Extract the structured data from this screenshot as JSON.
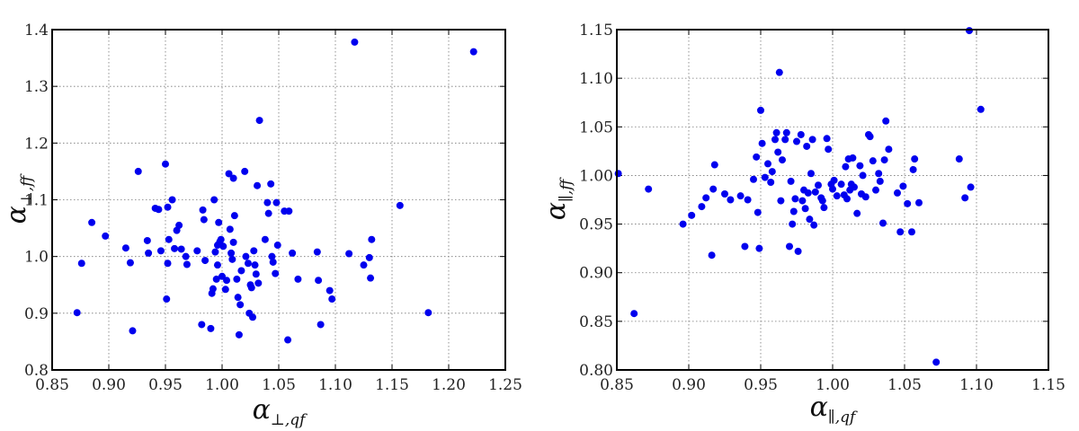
{
  "chart_data": [
    {
      "type": "scatter",
      "color": "#0000ee",
      "xlabel_main": "α",
      "xlabel_sub": "⊥,qf",
      "ylabel_main": "α",
      "ylabel_sub": "⊥,ff",
      "xlim": [
        0.85,
        1.25
      ],
      "ylim": [
        0.8,
        1.4
      ],
      "grid": true,
      "xticks": [
        "0.85",
        "0.90",
        "0.95",
        "1.00",
        "1.05",
        "1.10",
        "1.15",
        "1.20",
        "1.25"
      ],
      "yticks": [
        "0.8",
        "0.9",
        "1.0",
        "1.1",
        "1.2",
        "1.3",
        "1.4"
      ],
      "points": [
        [
          0.872,
          0.901
        ],
        [
          0.876,
          0.988
        ],
        [
          0.885,
          1.06
        ],
        [
          0.897,
          1.036
        ],
        [
          0.915,
          1.015
        ],
        [
          0.919,
          0.989
        ],
        [
          0.921,
          0.869
        ],
        [
          0.926,
          1.15
        ],
        [
          0.934,
          1.028
        ],
        [
          0.935,
          1.006
        ],
        [
          0.941,
          1.085
        ],
        [
          0.944,
          1.083
        ],
        [
          0.946,
          1.01
        ],
        [
          0.95,
          1.163
        ],
        [
          0.951,
          0.925
        ],
        [
          0.952,
          1.087
        ],
        [
          0.952,
          0.988
        ],
        [
          0.953,
          1.03
        ],
        [
          0.956,
          1.1
        ],
        [
          0.958,
          1.014
        ],
        [
          0.96,
          1.046
        ],
        [
          0.962,
          1.055
        ],
        [
          0.964,
          1.013
        ],
        [
          0.968,
          1.0
        ],
        [
          0.969,
          0.986
        ],
        [
          0.978,
          1.01
        ],
        [
          0.982,
          0.88
        ],
        [
          0.983,
          1.082
        ],
        [
          0.984,
          1.065
        ],
        [
          0.985,
          0.993
        ],
        [
          0.99,
          0.873
        ],
        [
          0.991,
          0.935
        ],
        [
          0.992,
          0.943
        ],
        [
          0.993,
          1.1
        ],
        [
          0.994,
          1.008
        ],
        [
          0.995,
          0.96
        ],
        [
          0.996,
          1.02
        ],
        [
          0.996,
          0.985
        ],
        [
          0.997,
          1.06
        ],
        [
          0.998,
          1.026
        ],
        [
          0.999,
          1.03
        ],
        [
          1.0,
          0.965
        ],
        [
          1.001,
          1.018
        ],
        [
          1.003,
          0.942
        ],
        [
          1.004,
          0.958
        ],
        [
          1.006,
          1.146
        ],
        [
          1.007,
          1.048
        ],
        [
          1.008,
          1.006
        ],
        [
          1.009,
          0.995
        ],
        [
          1.01,
          1.025
        ],
        [
          1.01,
          1.138
        ],
        [
          1.011,
          1.072
        ],
        [
          1.013,
          0.96
        ],
        [
          1.014,
          0.928
        ],
        [
          1.015,
          0.862
        ],
        [
          1.016,
          0.915
        ],
        [
          1.017,
          0.975
        ],
        [
          1.02,
          1.15
        ],
        [
          1.021,
          1.0
        ],
        [
          1.023,
          0.988
        ],
        [
          1.024,
          0.9
        ],
        [
          1.025,
          0.95
        ],
        [
          1.026,
          0.945
        ],
        [
          1.027,
          0.893
        ],
        [
          1.028,
          1.01
        ],
        [
          1.029,
          0.985
        ],
        [
          1.03,
          0.969
        ],
        [
          1.031,
          1.125
        ],
        [
          1.032,
          0.953
        ],
        [
          1.033,
          1.24
        ],
        [
          1.038,
          1.03
        ],
        [
          1.04,
          1.095
        ],
        [
          1.041,
          1.076
        ],
        [
          1.043,
          1.128
        ],
        [
          1.044,
          1.0
        ],
        [
          1.045,
          0.99
        ],
        [
          1.047,
          0.97
        ],
        [
          1.048,
          1.095
        ],
        [
          1.049,
          1.02
        ],
        [
          1.055,
          1.08
        ],
        [
          1.058,
          0.853
        ],
        [
          1.059,
          1.08
        ],
        [
          1.062,
          1.006
        ],
        [
          1.067,
          0.96
        ],
        [
          1.084,
          1.008
        ],
        [
          1.085,
          0.958
        ],
        [
          1.087,
          0.88
        ],
        [
          1.095,
          0.94
        ],
        [
          1.097,
          0.925
        ],
        [
          1.112,
          1.005
        ],
        [
          1.117,
          1.378
        ],
        [
          1.125,
          0.985
        ],
        [
          1.13,
          0.998
        ],
        [
          1.131,
          0.962
        ],
        [
          1.132,
          1.03
        ],
        [
          1.157,
          1.09
        ],
        [
          1.182,
          0.901
        ],
        [
          1.222,
          1.361
        ]
      ]
    },
    {
      "type": "scatter",
      "color": "#0000ee",
      "xlabel_main": "α",
      "xlabel_sub": "∥,qf",
      "ylabel_main": "α",
      "ylabel_sub": "∥,ff",
      "xlim": [
        0.85,
        1.15
      ],
      "ylim": [
        0.8,
        1.15
      ],
      "grid": true,
      "xticks": [
        "0.85",
        "0.90",
        "0.95",
        "1.00",
        "1.05",
        "1.10",
        "1.15"
      ],
      "yticks": [
        "0.80",
        "0.85",
        "0.90",
        "0.95",
        "1.00",
        "1.05",
        "1.10",
        "1.15"
      ],
      "points": [
        [
          0.851,
          1.002
        ],
        [
          0.862,
          0.858
        ],
        [
          0.872,
          0.986
        ],
        [
          0.896,
          0.95
        ],
        [
          0.902,
          0.959
        ],
        [
          0.909,
          0.968
        ],
        [
          0.912,
          0.977
        ],
        [
          0.916,
          0.918
        ],
        [
          0.917,
          0.986
        ],
        [
          0.918,
          1.011
        ],
        [
          0.925,
          0.981
        ],
        [
          0.929,
          0.975
        ],
        [
          0.936,
          0.979
        ],
        [
          0.939,
          0.927
        ],
        [
          0.941,
          0.975
        ],
        [
          0.945,
          0.996
        ],
        [
          0.947,
          1.019
        ],
        [
          0.948,
          0.962
        ],
        [
          0.949,
          0.925
        ],
        [
          0.95,
          1.067
        ],
        [
          0.951,
          1.033
        ],
        [
          0.953,
          0.998
        ],
        [
          0.955,
          1.012
        ],
        [
          0.957,
          0.993
        ],
        [
          0.958,
          1.004
        ],
        [
          0.96,
          1.037
        ],
        [
          0.961,
          1.044
        ],
        [
          0.962,
          1.024
        ],
        [
          0.963,
          1.106
        ],
        [
          0.964,
          0.974
        ],
        [
          0.965,
          1.016
        ],
        [
          0.967,
          1.037
        ],
        [
          0.968,
          1.044
        ],
        [
          0.97,
          0.927
        ],
        [
          0.971,
          0.994
        ],
        [
          0.972,
          0.95
        ],
        [
          0.973,
          0.963
        ],
        [
          0.974,
          0.976
        ],
        [
          0.975,
          1.035
        ],
        [
          0.976,
          0.922
        ],
        [
          0.978,
          1.042
        ],
        [
          0.979,
          0.974
        ],
        [
          0.98,
          0.985
        ],
        [
          0.981,
          0.966
        ],
        [
          0.982,
          1.03
        ],
        [
          0.983,
          0.982
        ],
        [
          0.984,
          0.955
        ],
        [
          0.985,
          1.002
        ],
        [
          0.986,
          1.037
        ],
        [
          0.987,
          0.949
        ],
        [
          0.988,
          0.983
        ],
        [
          0.99,
          0.99
        ],
        [
          0.992,
          0.977
        ],
        [
          0.993,
          0.974
        ],
        [
          0.994,
          0.967
        ],
        [
          0.996,
          1.038
        ],
        [
          0.997,
          1.027
        ],
        [
          0.999,
          0.991
        ],
        [
          1.0,
          0.986
        ],
        [
          1.001,
          0.995
        ],
        [
          1.003,
          0.979
        ],
        [
          1.006,
          0.991
        ],
        [
          1.008,
          0.98
        ],
        [
          1.009,
          1.009
        ],
        [
          1.01,
          0.976
        ],
        [
          1.011,
          1.017
        ],
        [
          1.012,
          0.985
        ],
        [
          1.013,
          0.991
        ],
        [
          1.014,
          1.018
        ],
        [
          1.015,
          0.988
        ],
        [
          1.017,
          0.961
        ],
        [
          1.019,
          1.01
        ],
        [
          1.02,
          0.981
        ],
        [
          1.021,
          1.0
        ],
        [
          1.023,
          0.978
        ],
        [
          1.025,
          1.042
        ],
        [
          1.026,
          1.04
        ],
        [
          1.028,
          1.015
        ],
        [
          1.03,
          0.985
        ],
        [
          1.032,
          1.002
        ],
        [
          1.033,
          0.994
        ],
        [
          1.035,
          0.951
        ],
        [
          1.036,
          1.016
        ],
        [
          1.037,
          1.056
        ],
        [
          1.039,
          1.027
        ],
        [
          1.045,
          0.982
        ],
        [
          1.047,
          0.942
        ],
        [
          1.049,
          0.989
        ],
        [
          1.052,
          0.971
        ],
        [
          1.055,
          0.942
        ],
        [
          1.056,
          1.006
        ],
        [
          1.057,
          1.017
        ],
        [
          1.06,
          0.972
        ],
        [
          1.088,
          1.017
        ],
        [
          1.092,
          0.977
        ],
        [
          1.095,
          1.149
        ],
        [
          1.096,
          0.988
        ],
        [
          1.103,
          1.068
        ],
        [
          1.072,
          0.808
        ]
      ]
    }
  ]
}
